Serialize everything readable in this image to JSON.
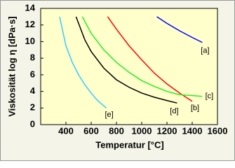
{
  "chart_data": {
    "type": "line",
    "x_label": "Temperatur [°C]",
    "y_label": "Viskosität   log η  [dPa·s]",
    "xlim": [
      200,
      1600
    ],
    "xticks": [
      400,
      600,
      800,
      1000,
      1200,
      1400,
      1600
    ],
    "ylim": [
      0,
      14
    ],
    "yticks": [
      0,
      2,
      4,
      6,
      8,
      10,
      12,
      14
    ],
    "series": [
      {
        "name": "[a]",
        "color": "#0000ff",
        "x": [
          1120,
          1200,
          1300,
          1400,
          1480
        ],
        "values": [
          13,
          12.2,
          11.3,
          10.5,
          9.9
        ]
      },
      {
        "name": "[b]",
        "color": "#ff0000",
        "x": [
          730,
          800,
          900,
          1000,
          1100,
          1200,
          1300,
          1400
        ],
        "values": [
          13,
          11.5,
          9.5,
          7.8,
          6.2,
          4.9,
          3.8,
          2.8
        ]
      },
      {
        "name": "[c]",
        "color": "#22ee22",
        "x": [
          530,
          600,
          700,
          800,
          900,
          1000,
          1100,
          1200,
          1300,
          1400,
          1480
        ],
        "values": [
          13,
          11,
          9,
          7.5,
          6.3,
          5.3,
          4.6,
          4,
          3.6,
          3.5,
          3.4
        ]
      },
      {
        "name": "[d]",
        "color": "#000000",
        "x": [
          480,
          550,
          600,
          700,
          800,
          900,
          1000,
          1100,
          1200,
          1280
        ],
        "values": [
          13,
          10.2,
          8.8,
          6.8,
          5.4,
          4.5,
          3.8,
          3.3,
          2.9,
          2.6
        ]
      },
      {
        "name": "[e]",
        "color": "#33ccff",
        "x": [
          350,
          400,
          450,
          500,
          550,
          600,
          650,
          720
        ],
        "values": [
          13,
          9.5,
          7.5,
          6,
          4.8,
          3.8,
          2.9,
          2
        ]
      }
    ]
  }
}
